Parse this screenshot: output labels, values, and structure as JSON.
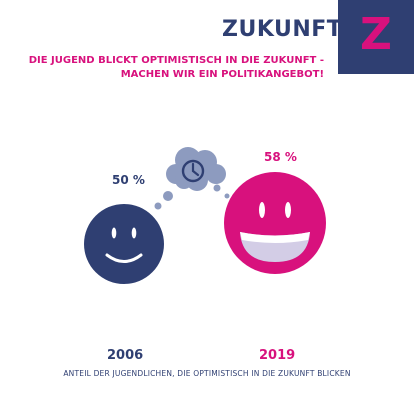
{
  "header": {
    "title": "ZUKUNFT",
    "badge_letter": "Z",
    "subtitle_line1": "DIE JUGEND BLICKT OPTIMISTISCH IN DIE ZUKUNFT -",
    "subtitle_line2": "MACHEN WIR EIN POLITIKANGEBOT!"
  },
  "colors": {
    "navy": "#2f3f72",
    "magenta": "#d8117d",
    "cloud": "#8d9bbf"
  },
  "stats": [
    {
      "year": "2006",
      "value_label": "50 %",
      "icon": "neutral-smiley-icon"
    },
    {
      "year": "2019",
      "value_label": "58 %",
      "icon": "laughing-smiley-icon"
    }
  ],
  "thought_bubble_icon": "clock-icon",
  "caption": "ANTEIL DER JUGENDLICHEN, DIE OPTIMISTISCH IN DIE ZUKUNFT BLICKEN"
}
